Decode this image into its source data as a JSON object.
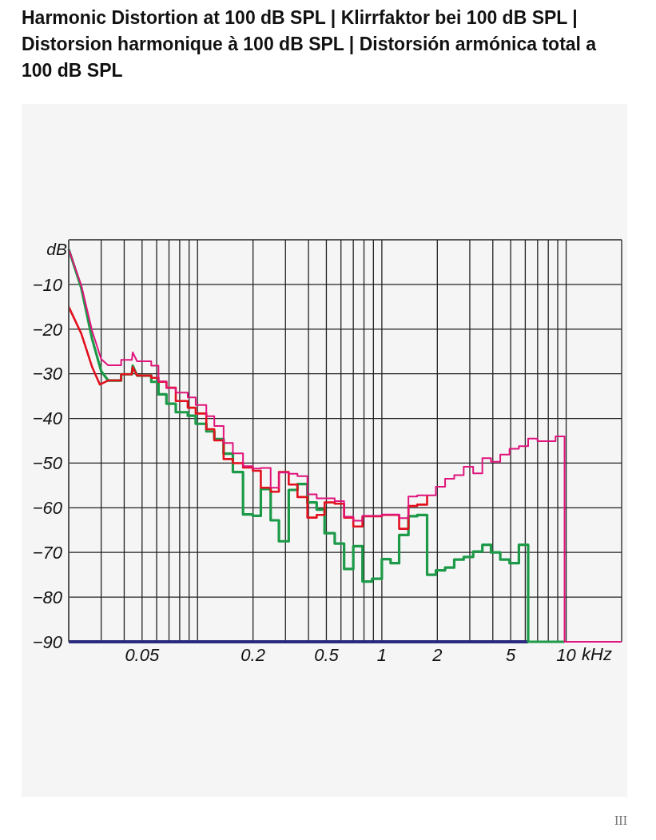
{
  "chart_data": {
    "type": "line",
    "title": "Harmonic Distortion at 100 dB SPL | Klirrfaktor bei 100 dB SPL | Distorsion harmonique à 100 dB SPL | Distorsión armónica total a 100 dB SPL",
    "xlabel": "kHz",
    "ylabel": "dB",
    "log": "x",
    "grid": true,
    "legend": false,
    "xlim": [
      0.02,
      20
    ],
    "ylim": [
      -90,
      0
    ],
    "xticks": [
      {
        "value": 0.02,
        "label": null
      },
      {
        "value": 0.03,
        "label": null
      },
      {
        "value": 0.04,
        "label": null
      },
      0.05,
      {
        "value": 0.06,
        "label": null
      },
      {
        "value": 0.07,
        "label": null
      },
      {
        "value": 0.08,
        "label": null
      },
      {
        "value": 0.09,
        "label": null
      },
      {
        "value": 0.1,
        "label": null
      },
      0.2,
      {
        "value": 0.3,
        "label": null
      },
      {
        "value": 0.4,
        "label": null
      },
      0.5,
      {
        "value": 0.6,
        "label": null
      },
      {
        "value": 0.7,
        "label": null
      },
      {
        "value": 0.8,
        "label": null
      },
      {
        "value": 0.9,
        "label": null
      },
      1,
      2,
      {
        "value": 3,
        "label": null
      },
      {
        "value": 4,
        "label": null
      },
      5,
      {
        "value": 6,
        "label": null
      },
      {
        "value": 7,
        "label": null
      },
      {
        "value": 8,
        "label": null
      },
      {
        "value": 9,
        "label": null
      },
      10,
      {
        "value": 20,
        "label": null
      }
    ],
    "yticks": [
      {
        "value": -90,
        "label": "−90"
      },
      {
        "value": -80,
        "label": "−80"
      },
      {
        "value": -70,
        "label": "−70"
      },
      {
        "value": -60,
        "label": "−60"
      },
      {
        "value": -50,
        "label": "−50"
      },
      {
        "value": -40,
        "label": "−40"
      },
      {
        "value": -30,
        "label": "−30"
      },
      {
        "value": -20,
        "label": "−20"
      },
      {
        "value": -10,
        "label": "−10"
      },
      {
        "value": 0,
        "label": null
      }
    ],
    "annotations": [
      "III"
    ],
    "series": [
      {
        "color": "#2b2a7e",
        "x": [
          0.02,
          6.22
        ],
        "values": [
          -90,
          -90
        ]
      },
      {
        "color": "#1c9a48",
        "x": [
          0.02,
          0.0234,
          0.0268,
          0.03,
          0.0327,
          0.0385,
          0.0385,
          0.044,
          0.0445,
          0.047,
          0.0561,
          0.0561,
          0.0614,
          0.0614,
          0.0678,
          0.0678,
          0.0762,
          0.0762,
          0.0885,
          0.0885,
          0.0977,
          0.0977,
          0.1116,
          0.1116,
          0.1233,
          0.1233,
          0.1385,
          0.1385,
          0.1555,
          0.1555,
          0.1765,
          0.1765,
          0.1995,
          0.1995,
          0.2205,
          0.2205,
          0.2493,
          0.2493,
          0.2764,
          0.2764,
          0.3125,
          0.3125,
          0.3485,
          0.3485,
          0.3945,
          0.3945,
          0.443,
          0.443,
          0.489,
          0.489,
          0.555,
          0.555,
          0.624,
          0.624,
          0.7,
          0.7,
          0.785,
          0.785,
          0.885,
          0.885,
          1.0,
          1.0,
          1.116,
          1.116,
          1.241,
          1.241,
          1.394,
          1.394,
          1.555,
          1.555,
          1.76,
          1.76,
          1.964,
          1.964,
          2.204,
          2.204,
          2.47,
          2.47,
          2.78,
          2.78,
          3.13,
          3.13,
          3.51,
          3.51,
          3.91,
          3.91,
          4.39,
          4.39,
          4.93,
          4.93,
          5.54,
          5.54,
          6.22,
          6.22,
          9.8
        ],
        "values": [
          -2.1,
          -10.8,
          -22.2,
          -29.4,
          -31.5,
          -31.5,
          -30.1,
          -30.1,
          -28.2,
          -30.4,
          -30.4,
          -31.8,
          -31.8,
          -34.6,
          -34.6,
          -36.7,
          -36.7,
          -38.6,
          -38.6,
          -39.4,
          -39.4,
          -41.2,
          -41.2,
          -42.9,
          -42.9,
          -44.6,
          -44.6,
          -47.9,
          -47.9,
          -52.0,
          -52.0,
          -61.5,
          -61.5,
          -61.8,
          -61.8,
          -55.8,
          -55.8,
          -62.8,
          -62.8,
          -67.5,
          -67.5,
          -56.0,
          -56.0,
          -54.7,
          -54.7,
          -58.8,
          -58.8,
          -60.4,
          -60.4,
          -65.7,
          -65.7,
          -68.0,
          -68.0,
          -73.7,
          -73.7,
          -68.6,
          -68.6,
          -76.5,
          -76.5,
          -75.9,
          -75.9,
          -71.5,
          -71.5,
          -72.4,
          -72.4,
          -66.1,
          -66.1,
          -61.9,
          -61.9,
          -61.6,
          -61.6,
          -75.0,
          -75.0,
          -74.0,
          -74.0,
          -73.4,
          -73.4,
          -71.6,
          -71.6,
          -71.0,
          -71.0,
          -69.8,
          -69.8,
          -68.3,
          -68.3,
          -70.0,
          -70.0,
          -71.6,
          -71.6,
          -72.4,
          -72.4,
          -68.3,
          -68.3,
          -90,
          -90
        ]
      },
      {
        "color": "#e3101e",
        "x": [
          0.02,
          0.0234,
          0.0268,
          0.0295,
          0.0327,
          0.0385,
          0.0385,
          0.044,
          0.0445,
          0.047,
          0.0561,
          0.0561,
          0.0614,
          0.0614,
          0.0678,
          0.0678,
          0.0762,
          0.0762,
          0.0885,
          0.0885,
          0.0977,
          0.0977,
          0.1116,
          0.1116,
          0.1233,
          0.1233,
          0.1385,
          0.1385,
          0.1555,
          0.1555,
          0.1765,
          0.1765,
          0.1995,
          0.1995,
          0.2205,
          0.2205,
          0.2493,
          0.2493,
          0.2764,
          0.2764,
          0.3125,
          0.3125,
          0.3485,
          0.3485,
          0.3945,
          0.3945,
          0.443,
          0.443,
          0.489,
          0.489,
          0.555,
          0.555,
          0.624,
          0.624,
          0.7,
          0.7,
          0.785,
          0.785,
          1.0,
          1.0,
          1.241,
          1.241,
          1.394,
          1.394,
          1.555,
          1.555,
          1.76,
          1.76
        ],
        "values": [
          -15.0,
          -21.0,
          -28.5,
          -32.4,
          -31.5,
          -31.5,
          -30.1,
          -30.1,
          -28.5,
          -30.4,
          -30.4,
          -30.9,
          -30.9,
          -31.8,
          -31.8,
          -33.1,
          -33.1,
          -36.1,
          -36.1,
          -37.6,
          -37.6,
          -38.9,
          -38.9,
          -42.4,
          -42.4,
          -44.9,
          -44.9,
          -49.1,
          -49.1,
          -50.0,
          -50.0,
          -51.0,
          -51.0,
          -51.7,
          -51.7,
          -55.5,
          -55.5,
          -56.4,
          -56.4,
          -52.0,
          -52.0,
          -54.8,
          -54.8,
          -57.6,
          -57.6,
          -62.2,
          -62.2,
          -61.6,
          -61.6,
          -58.8,
          -58.8,
          -59.1,
          -59.1,
          -62.2,
          -62.2,
          -64.2,
          -64.2,
          -61.9,
          -61.9,
          -61.6,
          -61.6,
          -64.7,
          -64.7,
          -59.6,
          -59.6,
          -59.3,
          -59.3,
          -57.2
        ]
      },
      {
        "color": "#e0147c",
        "x": [
          0.02,
          0.0234,
          0.0268,
          0.03,
          0.0327,
          0.0385,
          0.0385,
          0.044,
          0.0445,
          0.047,
          0.0561,
          0.0561,
          0.0614,
          0.0614,
          0.0678,
          0.0678,
          0.0762,
          0.0762,
          0.0885,
          0.0885,
          0.0977,
          0.0977,
          0.1116,
          0.1116,
          0.1233,
          0.1233,
          0.1385,
          0.1385,
          0.1555,
          0.1555,
          0.1765,
          0.1765,
          0.1995,
          0.1995,
          0.2205,
          0.2205,
          0.2493,
          0.2493,
          0.2764,
          0.2764,
          0.3125,
          0.3125,
          0.3485,
          0.3485,
          0.3945,
          0.3945,
          0.443,
          0.443,
          0.555,
          0.555,
          0.624,
          0.624,
          0.7,
          0.7,
          0.785,
          0.785,
          1.0,
          1.0,
          1.241,
          1.241,
          1.394,
          1.394,
          1.555,
          1.555,
          1.964,
          1.964,
          2.204,
          2.204,
          2.47,
          2.47,
          2.78,
          2.78,
          3.13,
          3.13,
          3.51,
          3.51,
          3.91,
          3.91,
          4.39,
          4.39,
          4.93,
          4.93,
          5.54,
          5.54,
          6.22,
          6.22,
          6.99,
          6.99,
          8.76,
          8.76,
          9.8,
          9.8,
          20
        ],
        "values": [
          -2.1,
          -10.2,
          -20.4,
          -26.7,
          -28.1,
          -28.1,
          -26.9,
          -26.9,
          -25.2,
          -27.2,
          -27.2,
          -28.2,
          -28.2,
          -31.7,
          -31.7,
          -33.2,
          -33.2,
          -34.2,
          -34.2,
          -35.3,
          -35.3,
          -37.0,
          -37.0,
          -39.5,
          -39.5,
          -41.7,
          -41.7,
          -45.5,
          -45.5,
          -47.8,
          -47.8,
          -50.7,
          -50.7,
          -51.2,
          -51.2,
          -51.1,
          -51.1,
          -55.5,
          -55.5,
          -52.1,
          -52.1,
          -52.4,
          -52.4,
          -52.9,
          -52.9,
          -57.0,
          -57.0,
          -57.9,
          -57.9,
          -58.5,
          -58.5,
          -62.0,
          -62.0,
          -62.9,
          -62.9,
          -61.8,
          -61.8,
          -61.5,
          -61.5,
          -62.3,
          -62.3,
          -57.5,
          -57.5,
          -57.2,
          -57.2,
          -55.3,
          -55.3,
          -53.5,
          -53.5,
          -52.7,
          -52.7,
          -50.8,
          -50.8,
          -52.3,
          -52.3,
          -48.9,
          -48.9,
          -49.7,
          -49.7,
          -48.1,
          -48.1,
          -46.8,
          -46.8,
          -46.2,
          -46.2,
          -44.5,
          -44.5,
          -45.1,
          -45.1,
          -44.0,
          -44.0,
          -90,
          -90
        ]
      }
    ]
  }
}
